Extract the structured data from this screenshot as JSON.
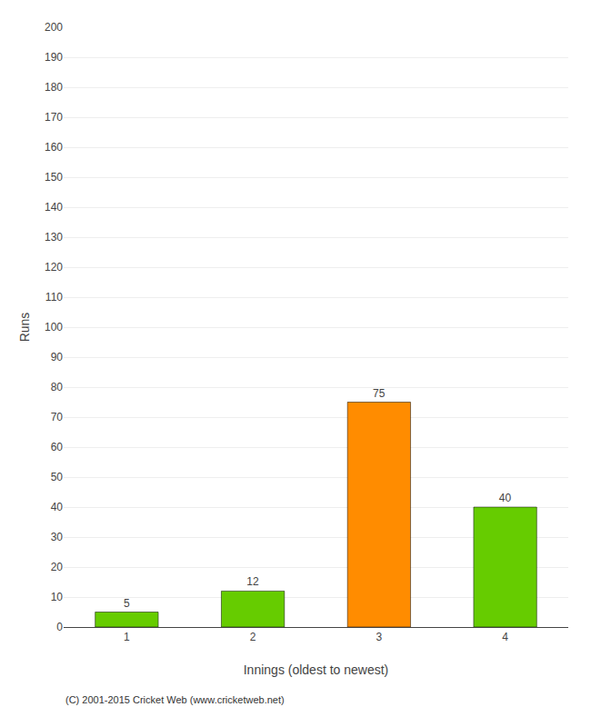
{
  "chart_data": {
    "type": "bar",
    "categories": [
      "1",
      "2",
      "3",
      "4"
    ],
    "values": [
      5,
      12,
      75,
      40
    ],
    "colors": [
      "#66cc00",
      "#66cc00",
      "#ff8c00",
      "#66cc00"
    ],
    "xlabel": "Innings (oldest to newest)",
    "ylabel": "Runs",
    "ylim": [
      0,
      200
    ],
    "yticks": [
      0,
      10,
      20,
      30,
      40,
      50,
      60,
      70,
      80,
      90,
      100,
      110,
      120,
      130,
      140,
      150,
      160,
      170,
      180,
      190,
      200
    ],
    "grid": true,
    "data_labels": true,
    "annotations": [
      "(C) 2001-2015 Cricket Web (www.cricketweb.net)"
    ]
  }
}
